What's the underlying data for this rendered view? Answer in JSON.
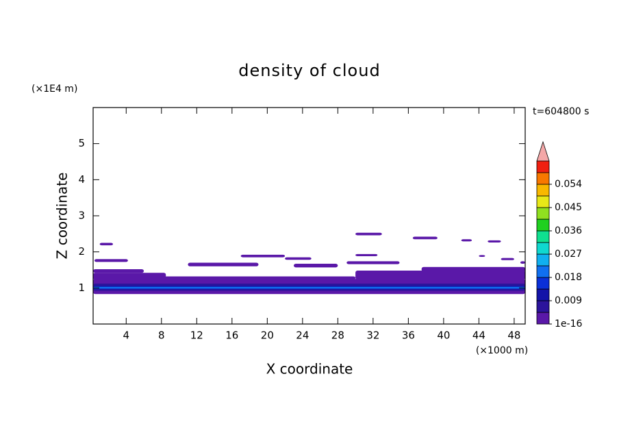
{
  "chart_data": {
    "type": "contour",
    "title": "density of cloud",
    "time_label": "t=604800 s",
    "x_label": "X coordinate",
    "x_unit": "(×1000 m)",
    "y_label": "Z coordinate",
    "y_unit": "(×1E4 m)",
    "xlim": [
      0.25,
      49.25
    ],
    "xticks": [
      4,
      8,
      12,
      16,
      20,
      24,
      28,
      32,
      36,
      40,
      44,
      48
    ],
    "ylim": [
      0,
      6
    ],
    "yticks": [
      1,
      2,
      3,
      4,
      5
    ],
    "patches": [
      {
        "x0": 0.25,
        "x1": 49.25,
        "z0": 0.83,
        "z1": 1.25,
        "value": 0.002
      },
      {
        "x0": 0.25,
        "x1": 30,
        "z0": 1.23,
        "z1": 1.32,
        "value": 0.002
      },
      {
        "x0": 0.25,
        "x1": 8.5,
        "z0": 1.28,
        "z1": 1.42,
        "value": 0.002
      },
      {
        "x0": 0.25,
        "x1": 6,
        "z0": 1.42,
        "z1": 1.52,
        "value": 0.002
      },
      {
        "x0": 30,
        "x1": 49.25,
        "z0": 1.23,
        "z1": 1.48,
        "value": 0.002
      },
      {
        "x0": 37.5,
        "x1": 49.25,
        "z0": 1.45,
        "z1": 1.58,
        "value": 0.002
      },
      {
        "x0": 0.4,
        "x1": 4.2,
        "z0": 1.72,
        "z1": 1.8,
        "value": 0.002
      },
      {
        "x0": 1,
        "x1": 2.5,
        "z0": 2.18,
        "z1": 2.25,
        "value": 0.002
      },
      {
        "x0": 11,
        "x1": 19,
        "z0": 1.6,
        "z1": 1.7,
        "value": 0.002
      },
      {
        "x0": 17,
        "x1": 22,
        "z0": 1.85,
        "z1": 1.92,
        "value": 0.002
      },
      {
        "x0": 22,
        "x1": 25,
        "z0": 1.78,
        "z1": 1.85,
        "value": 0.002
      },
      {
        "x0": 23,
        "x1": 28,
        "z0": 1.57,
        "z1": 1.67,
        "value": 0.002
      },
      {
        "x0": 29,
        "x1": 35,
        "z0": 1.66,
        "z1": 1.74,
        "value": 0.002
      },
      {
        "x0": 30,
        "x1": 32.5,
        "z0": 1.88,
        "z1": 1.94,
        "value": 0.002
      },
      {
        "x0": 30,
        "x1": 33,
        "z0": 2.46,
        "z1": 2.53,
        "value": 0.002
      },
      {
        "x0": 36.5,
        "x1": 39.3,
        "z0": 2.35,
        "z1": 2.42,
        "value": 0.002
      },
      {
        "x0": 42,
        "x1": 43.2,
        "z0": 2.29,
        "z1": 2.35,
        "value": 0.002
      },
      {
        "x0": 45,
        "x1": 46.5,
        "z0": 2.26,
        "z1": 2.32,
        "value": 0.002
      },
      {
        "x0": 44,
        "x1": 44.7,
        "z0": 1.86,
        "z1": 1.91,
        "value": 0.002
      },
      {
        "x0": 46.5,
        "x1": 48,
        "z0": 1.77,
        "z1": 1.83,
        "value": 0.002
      },
      {
        "x0": 48.7,
        "x1": 49.25,
        "z0": 1.67,
        "z1": 1.74,
        "value": 0.002
      },
      {
        "x0": 0.25,
        "x1": 49.25,
        "z0": 0.92,
        "z1": 1.12,
        "value": 0.006
      },
      {
        "x0": 0.25,
        "x1": 49.25,
        "z0": 0.96,
        "z1": 1.06,
        "value": 0.012
      },
      {
        "x0": 0.25,
        "x1": 49.25,
        "z0": 0.98,
        "z1": 1.03,
        "value": 0.02
      }
    ],
    "colorbar": {
      "levels": [
        1e-16,
        0.0045,
        0.009,
        0.0135,
        0.018,
        0.0225,
        0.027,
        0.0315,
        0.036,
        0.0405,
        0.045,
        0.0495,
        0.054,
        0.0585,
        0.063
      ],
      "colors": [
        "#5a18a8",
        "#2c149c",
        "#1414a8",
        "#0a30d8",
        "#1070f0",
        "#10b0f0",
        "#10d8d0",
        "#10e090",
        "#20d020",
        "#90e020",
        "#e8e818",
        "#f8b800",
        "#f87800",
        "#f02010"
      ],
      "extend_color": "#f4a8a8",
      "ticks": [
        1e-16,
        0.009,
        0.018,
        0.027,
        0.036,
        0.045,
        0.054
      ]
    }
  }
}
